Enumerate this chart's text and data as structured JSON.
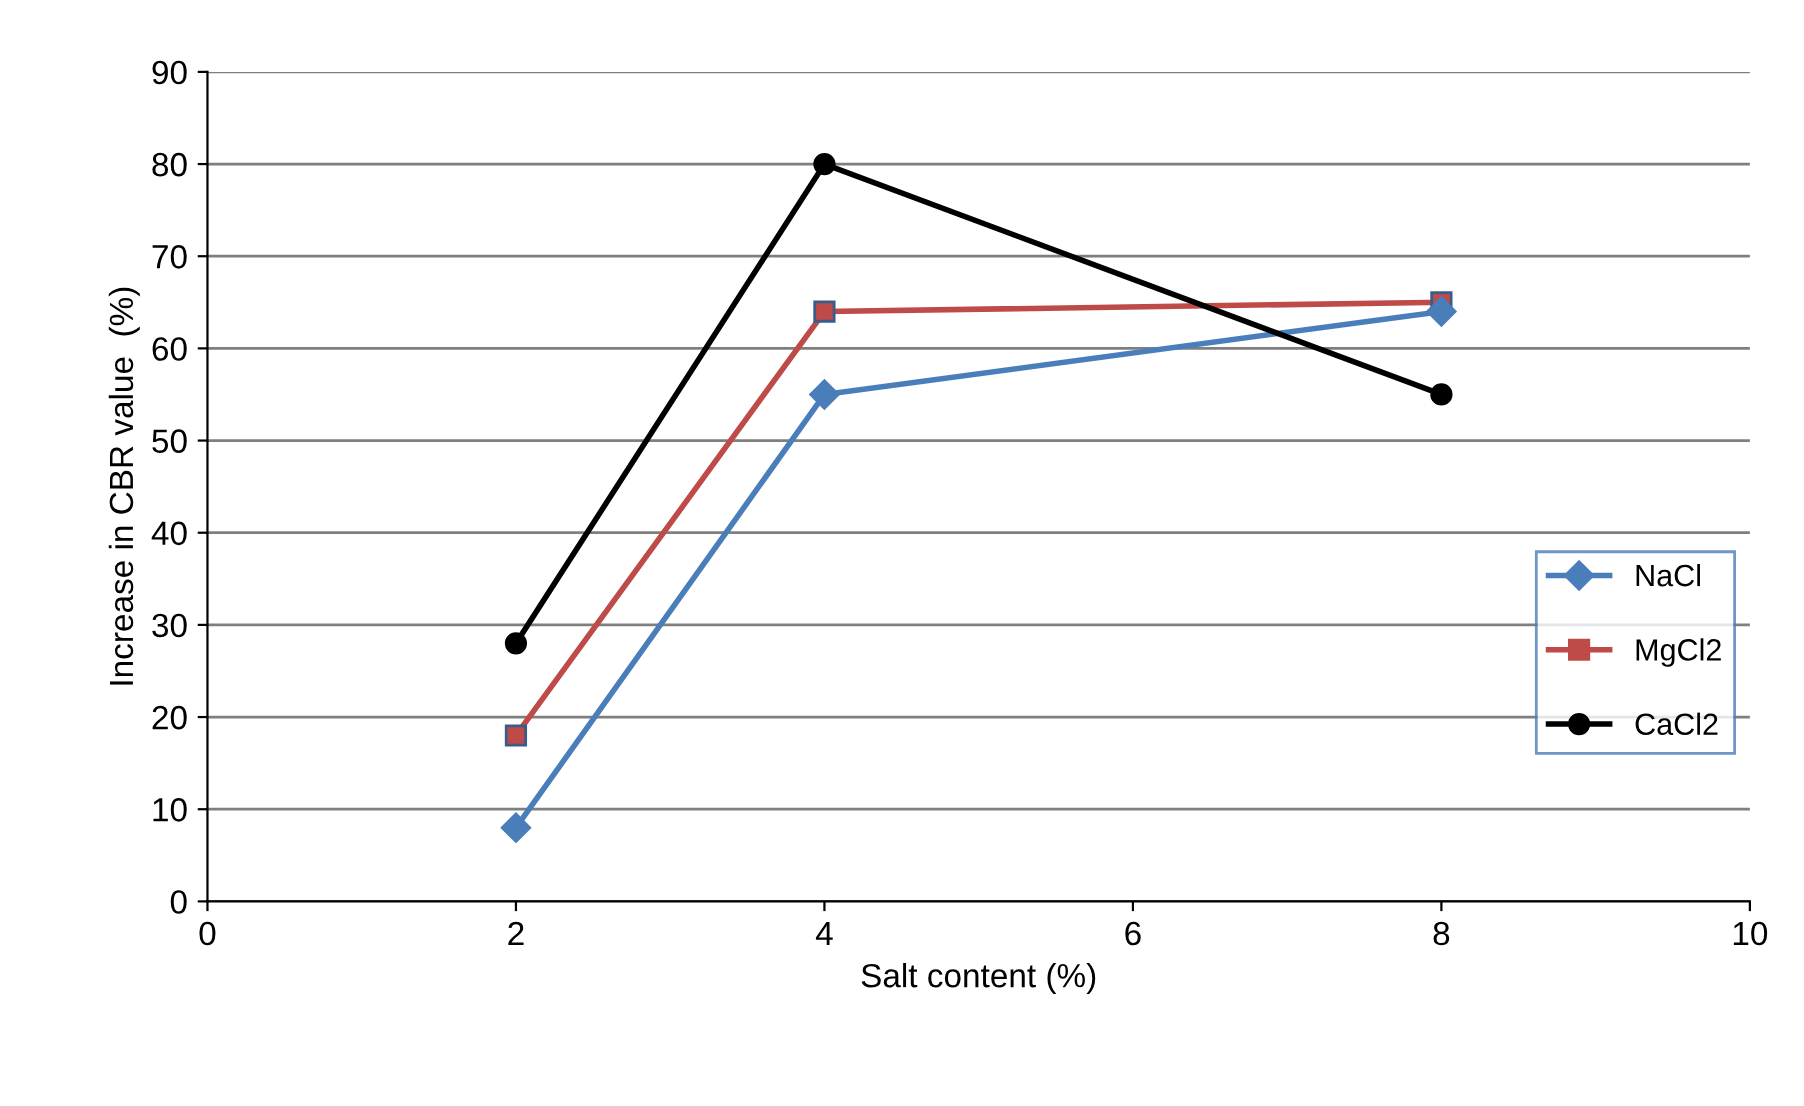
{
  "chart_data": {
    "type": "line",
    "xlabel": "Salt content (%)",
    "ylabel": "Increase in CBR value  (%)",
    "x": [
      2,
      4,
      8
    ],
    "series": [
      {
        "name": "NaCl",
        "color": "#4a7ebb",
        "marker": "diamond",
        "values": [
          8,
          55,
          64
        ]
      },
      {
        "name": "MgCl2",
        "color": "#be4b48",
        "marker": "square",
        "values": [
          18,
          64,
          65
        ]
      },
      {
        "name": "CaCl2",
        "color": "#000000",
        "marker": "circle",
        "values": [
          28,
          80,
          55
        ]
      }
    ],
    "xlim": [
      0,
      10
    ],
    "xticks": [
      0,
      2,
      4,
      6,
      8,
      10
    ],
    "ylim": [
      0,
      90
    ],
    "yticks": [
      0,
      10,
      20,
      30,
      40,
      50,
      60,
      70,
      80,
      90
    ],
    "grid": "y",
    "legend": "right",
    "line_style": "solid"
  }
}
